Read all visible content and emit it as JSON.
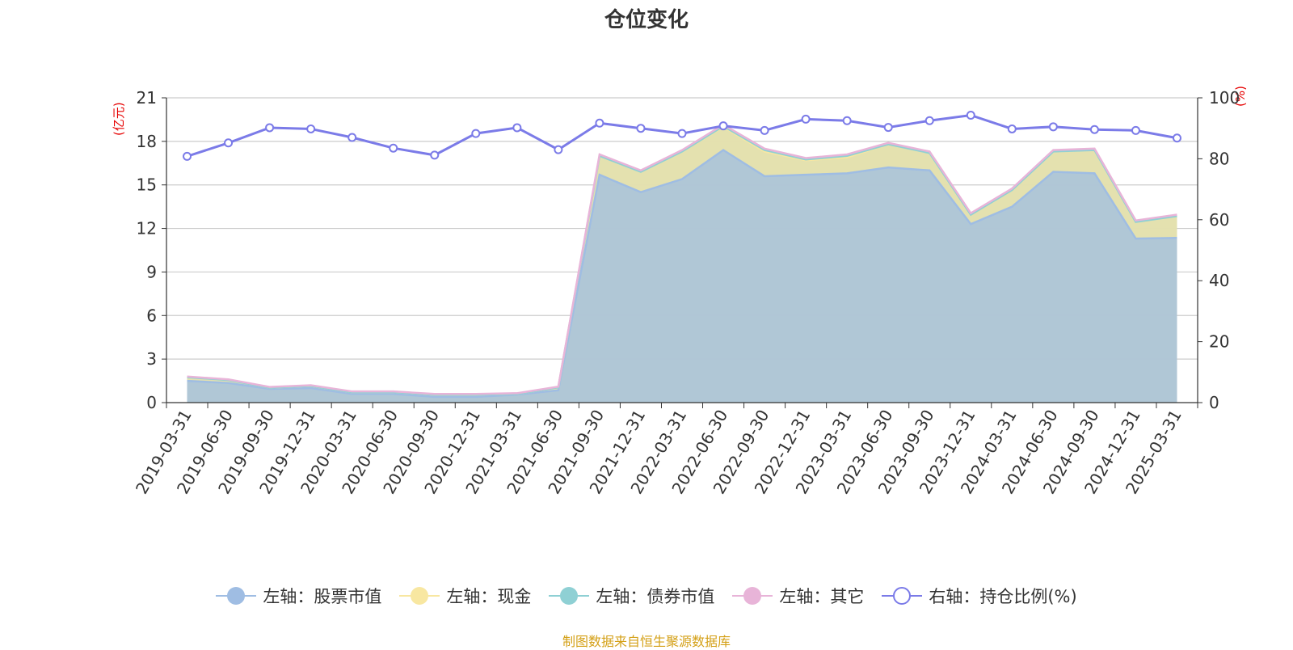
{
  "chart_data": {
    "type": "area",
    "title": "仓位变化",
    "y_left_label": "(亿元)",
    "y_right_label": "(%)",
    "y_left_lim": [
      0,
      21
    ],
    "y_left_ticks": [
      0,
      3,
      6,
      9,
      12,
      15,
      18,
      21
    ],
    "y_right_lim": [
      0,
      100
    ],
    "y_right_ticks": [
      0,
      20,
      40,
      60,
      80,
      100
    ],
    "grid": true,
    "legend_position": "bottom",
    "x": [
      "2019-03-31",
      "2019-06-30",
      "2019-09-30",
      "2019-12-31",
      "2020-03-31",
      "2020-06-30",
      "2020-09-30",
      "2020-12-31",
      "2021-03-31",
      "2021-06-30",
      "2021-09-30",
      "2021-12-31",
      "2022-03-31",
      "2022-06-30",
      "2022-09-30",
      "2022-12-31",
      "2023-03-31",
      "2023-06-30",
      "2023-09-30",
      "2023-12-31",
      "2024-03-31",
      "2024-06-30",
      "2024-09-30",
      "2024-12-31",
      "2025-03-31"
    ],
    "series": [
      {
        "name": "左轴：股票市值",
        "axis": "left",
        "stacked": true,
        "color": "#9fbde3",
        "values": [
          1.5,
          1.35,
          0.95,
          1.0,
          0.6,
          0.6,
          0.4,
          0.4,
          0.55,
          0.85,
          15.7,
          14.5,
          15.4,
          17.4,
          15.6,
          15.7,
          15.8,
          16.2,
          16.0,
          12.3,
          13.5,
          15.9,
          15.8,
          11.3,
          11.35
        ]
      },
      {
        "name": "左轴：现金",
        "axis": "left",
        "stacked": true,
        "color": "#f8e7a1",
        "values": [
          0.25,
          0.2,
          0.08,
          0.15,
          0.12,
          0.12,
          0.15,
          0.15,
          0.05,
          0.2,
          1.3,
          1.4,
          1.9,
          1.6,
          1.7,
          1.0,
          1.1,
          1.6,
          1.2,
          0.65,
          1.15,
          1.4,
          1.6,
          1.15,
          1.5
        ]
      },
      {
        "name": "左轴：债券市值",
        "axis": "left",
        "stacked": true,
        "color": "#8fd0d4",
        "values": [
          0,
          0,
          0,
          0,
          0,
          0,
          0,
          0,
          0,
          0,
          0,
          0,
          0,
          0.05,
          0.1,
          0.05,
          0.1,
          0,
          0,
          0,
          0,
          0,
          0,
          0,
          0
        ]
      },
      {
        "name": "左轴：其它",
        "axis": "left",
        "stacked": true,
        "color": "#e8b4d8",
        "values": [
          0.05,
          0.05,
          0.05,
          0.05,
          0.05,
          0.05,
          0.05,
          0.05,
          0.05,
          0.05,
          0.1,
          0.1,
          0.1,
          0.1,
          0.1,
          0.1,
          0.1,
          0.1,
          0.1,
          0.1,
          0.1,
          0.1,
          0.1,
          0.1,
          0.1
        ]
      },
      {
        "name": "右轴：持仓比例(%)",
        "axis": "right",
        "stacked": false,
        "color": "#7b7be8",
        "values": [
          80.8,
          85.2,
          90.2,
          89.8,
          87.0,
          83.5,
          81.2,
          88.3,
          90.2,
          83.0,
          91.7,
          90.0,
          88.3,
          90.8,
          89.3,
          93.0,
          92.5,
          90.3,
          92.5,
          94.3,
          89.8,
          90.5,
          89.6,
          89.3,
          86.8
        ]
      }
    ]
  },
  "legend": [
    {
      "label": "左轴：股票市值",
      "color": "#9fbde3",
      "hollow": false
    },
    {
      "label": "左轴：现金",
      "color": "#f8e7a1",
      "hollow": false
    },
    {
      "label": "左轴：债券市值",
      "color": "#8fd0d4",
      "hollow": false
    },
    {
      "label": "左轴：其它",
      "color": "#e8b4d8",
      "hollow": false
    },
    {
      "label": "右轴：持仓比例(%)",
      "color": "#7b7be8",
      "hollow": true
    }
  ],
  "source_text": "制图数据来自恒生聚源数据库"
}
